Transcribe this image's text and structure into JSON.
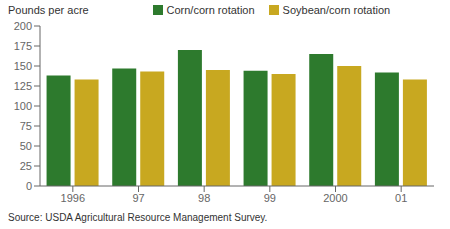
{
  "chart_data": {
    "type": "bar",
    "ylabel": "Pounds per acre",
    "categories": [
      "1996",
      "97",
      "98",
      "99",
      "2000",
      "01"
    ],
    "series": [
      {
        "name": "Corn/corn rotation",
        "color": "#2d7a2d",
        "values": [
          138,
          147,
          170,
          144,
          165,
          142
        ]
      },
      {
        "name": "Soybean/corn rotation",
        "color": "#c8a820",
        "values": [
          133,
          143,
          145,
          140,
          150,
          133
        ]
      }
    ],
    "ylim": [
      0,
      200
    ],
    "yticks": [
      0,
      25,
      50,
      75,
      100,
      125,
      150,
      175,
      200
    ],
    "grid": false,
    "legend": "upper center",
    "annotations": [
      "Source: USDA Agricultural Resource Management Survey."
    ]
  }
}
